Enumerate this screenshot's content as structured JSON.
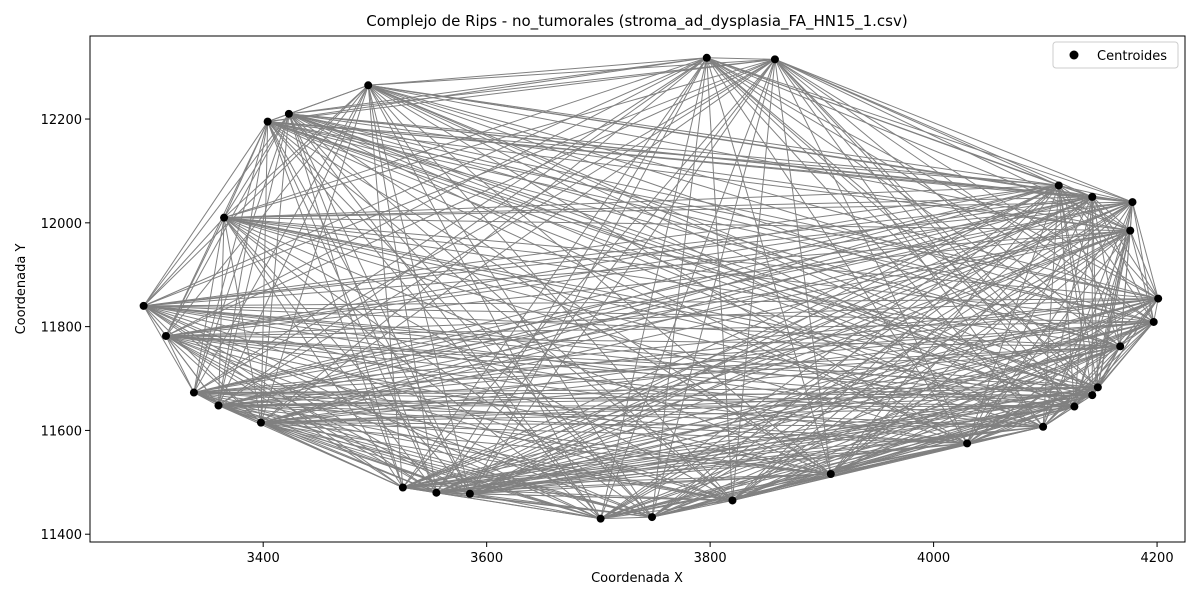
{
  "chart_data": {
    "type": "scatter",
    "title": "Complejo de Rips - no_tumorales (stroma_ad_dysplasia_FA_HN15_1.csv)",
    "xlabel": "Coordenada X",
    "ylabel": "Coordenada Y",
    "xlim": [
      3245,
      4225
    ],
    "ylim": [
      11385,
      12360
    ],
    "xticks": [
      3400,
      3600,
      3800,
      4000,
      4200
    ],
    "yticks": [
      11400,
      11600,
      11800,
      12000,
      12200
    ],
    "grid": false,
    "legend_position": "top-right",
    "point_color": "#000000",
    "edge_color": "#808080",
    "series": [
      {
        "name": "Centroides",
        "points": [
          [
            3293,
            11840
          ],
          [
            3313,
            11782
          ],
          [
            3338,
            11673
          ],
          [
            3360,
            11648
          ],
          [
            3398,
            11615
          ],
          [
            3404,
            12195
          ],
          [
            3423,
            12210
          ],
          [
            3365,
            12010
          ],
          [
            3494,
            12265
          ],
          [
            3525,
            11490
          ],
          [
            3555,
            11480
          ],
          [
            3585,
            11478
          ],
          [
            3702,
            11430
          ],
          [
            3748,
            11433
          ],
          [
            3797,
            12318
          ],
          [
            3820,
            11465
          ],
          [
            3858,
            12315
          ],
          [
            3908,
            11516
          ],
          [
            4030,
            11575
          ],
          [
            4098,
            11607
          ],
          [
            4126,
            11646
          ],
          [
            4142,
            11668
          ],
          [
            4147,
            11683
          ],
          [
            4167,
            11762
          ],
          [
            4176,
            11985
          ],
          [
            4178,
            12040
          ],
          [
            4142,
            12050
          ],
          [
            4112,
            12072
          ],
          [
            4197,
            11809
          ],
          [
            4201,
            11854
          ]
        ]
      }
    ]
  },
  "legend": {
    "label": "Centroides"
  }
}
